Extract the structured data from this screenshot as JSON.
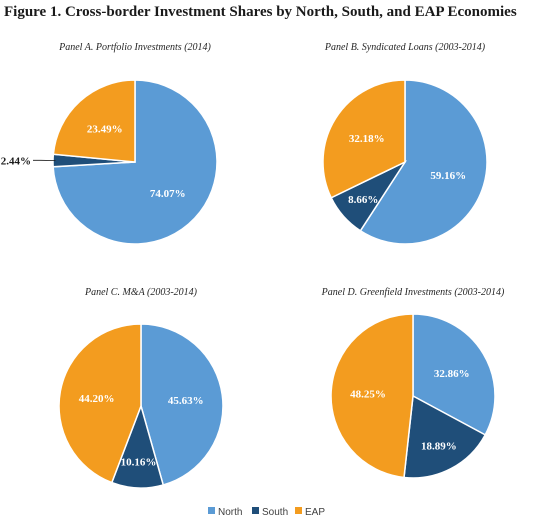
{
  "figure": {
    "title": "Figure 1. Cross-border Investment Shares by North, South, and EAP Economies"
  },
  "colors": {
    "North": "#5b9bd5",
    "South": "#1f4e79",
    "EAP": "#f39c1f"
  },
  "legend": {
    "placement": "bottom-center",
    "items": [
      "North",
      "South",
      "EAP"
    ]
  },
  "chart_data": [
    {
      "type": "pie",
      "title": "Panel A. Portfolio Investments (2014)",
      "slices": [
        {
          "name": "North",
          "value": 74.07,
          "label": "74.07%"
        },
        {
          "name": "South",
          "value": 2.44,
          "label": "2.44%"
        },
        {
          "name": "EAP",
          "value": 23.49,
          "label": "23.49%"
        }
      ]
    },
    {
      "type": "pie",
      "title": "Panel B. Syndicated Loans (2003-2014)",
      "slices": [
        {
          "name": "North",
          "value": 59.16,
          "label": "59.16%"
        },
        {
          "name": "South",
          "value": 8.66,
          "label": "8.66%"
        },
        {
          "name": "EAP",
          "value": 32.18,
          "label": "32.18%"
        }
      ]
    },
    {
      "type": "pie",
      "title": "Panel C. M&A (2003-2014)",
      "slices": [
        {
          "name": "North",
          "value": 45.63,
          "label": "45.63%"
        },
        {
          "name": "South",
          "value": 10.16,
          "label": "10.16%"
        },
        {
          "name": "EAP",
          "value": 44.2,
          "label": "44.20%"
        }
      ]
    },
    {
      "type": "pie",
      "title": "Panel D. Greenfield Investments (2003-2014)",
      "slices": [
        {
          "name": "North",
          "value": 32.86,
          "label": "32.86%"
        },
        {
          "name": "South",
          "value": 18.89,
          "label": "18.89%"
        },
        {
          "name": "EAP",
          "value": 48.25,
          "label": "48.25%"
        }
      ]
    }
  ]
}
